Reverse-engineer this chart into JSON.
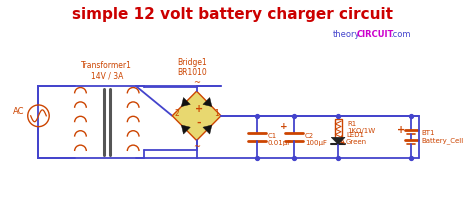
{
  "title": "simple 12 volt battery charger circuit",
  "title_color": "#cc0000",
  "title_fontsize": 11,
  "bg_color": "#ffffff",
  "wire_color": "#4444cc",
  "component_color": "#cc4400",
  "labels": {
    "transformer": "Transformer1\n14V / 3A",
    "bridge": "Bridge1\nBR1010",
    "c1": "C1\n0.01μF",
    "c2": "C2\n100μF",
    "r1": "R1\n1KΩ/1W",
    "led": "LED1\nGreen",
    "battery": "BT1\nBattery_Cell",
    "ac": "AC"
  },
  "wm_theory_color": "#4444cc",
  "wm_circuit_color": "#cc00cc"
}
